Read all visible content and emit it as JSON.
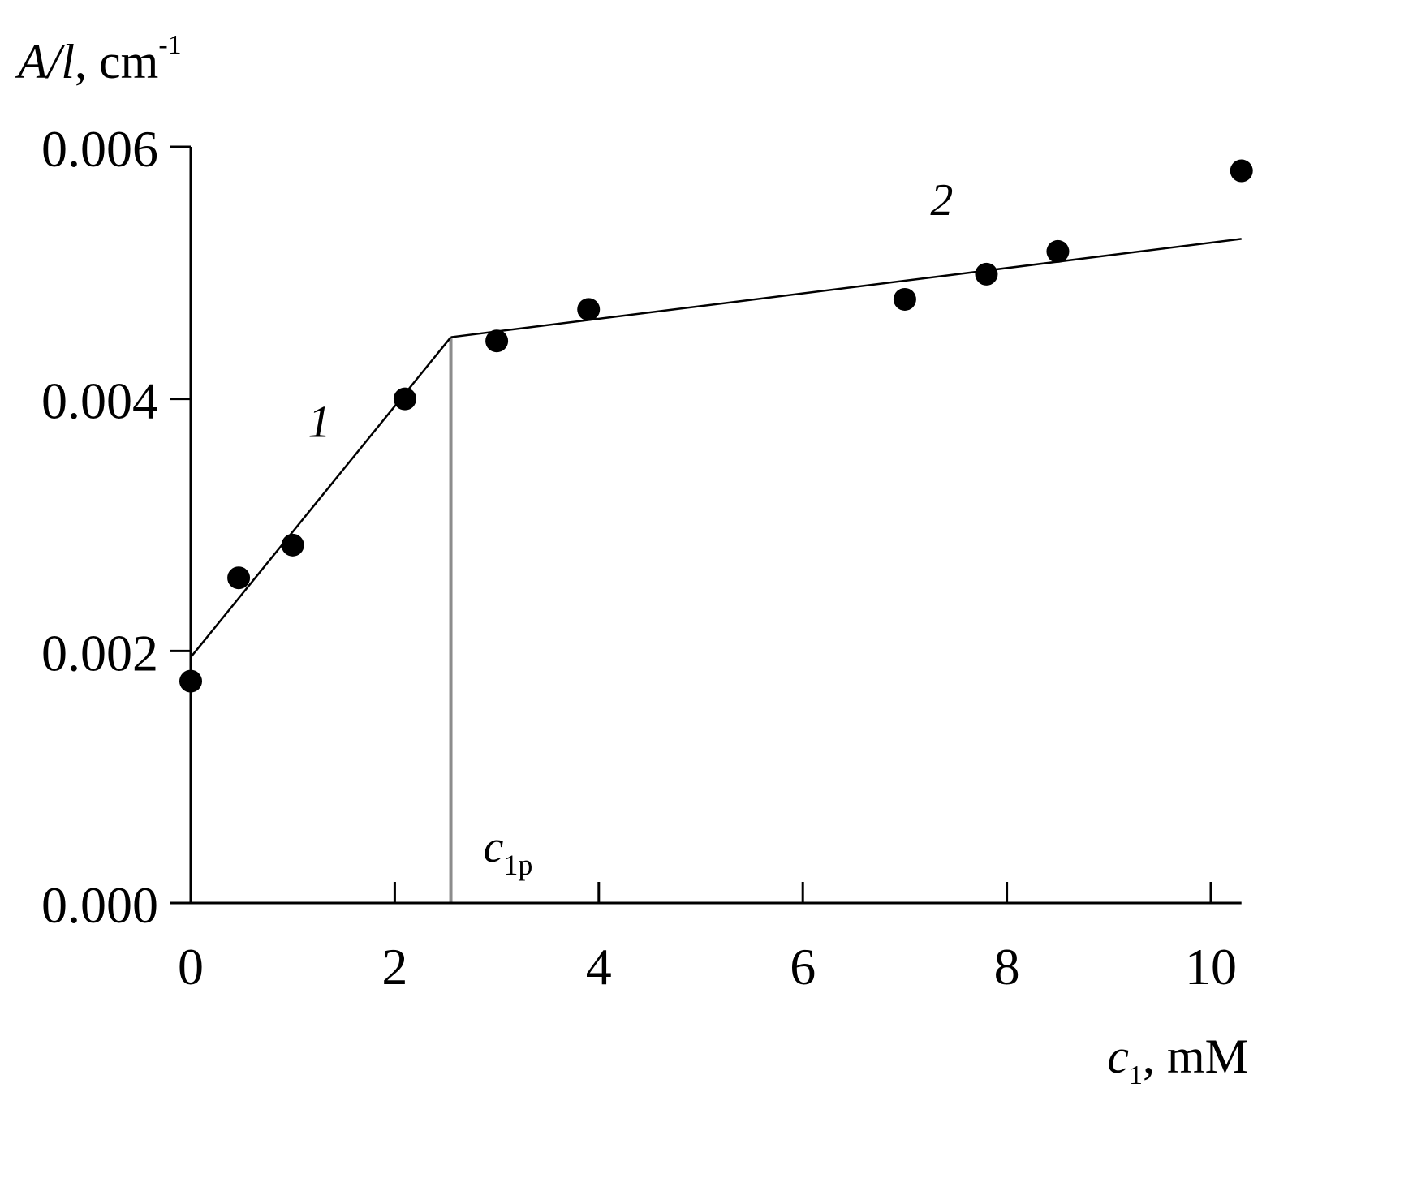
{
  "chart_data": {
    "type": "scatter",
    "title": "",
    "xlabel": {
      "symbol": "c",
      "subscript": "1",
      "unit": ", mM"
    },
    "ylabel": {
      "symbol": "A/l",
      "unit": ", cm",
      "superscript": "-1"
    },
    "xlim": [
      0,
      10.3
    ],
    "ylim": [
      0,
      0.006
    ],
    "x_ticks": [
      0,
      2,
      4,
      6,
      8,
      10
    ],
    "x_tick_labels": [
      "0",
      "2",
      "4",
      "6",
      "8",
      "10"
    ],
    "y_ticks": [
      0,
      0.002,
      0.004,
      0.006
    ],
    "y_tick_labels": [
      "0.000",
      "0.002",
      "0.004",
      "0.006"
    ],
    "grid": false,
    "series": [
      {
        "marker": "filled-circle",
        "x": [
          0.0,
          0.47,
          1.0,
          2.1,
          3.0,
          3.9,
          7.0,
          7.8,
          8.5,
          10.3
        ],
        "y": [
          0.00176,
          0.00258,
          0.00284,
          0.004,
          0.00446,
          0.00471,
          0.00479,
          0.00499,
          0.00517,
          0.00581
        ]
      }
    ],
    "fit_lines": [
      {
        "label": "1",
        "x": [
          0.0,
          2.55
        ],
        "y": [
          0.00195,
          0.00449
        ]
      },
      {
        "label": "2",
        "x": [
          2.55,
          10.3
        ],
        "y": [
          0.00449,
          0.00527
        ]
      }
    ],
    "vertical_marker": {
      "x": 2.55,
      "label": {
        "symbol": "c",
        "subscript": "1p"
      },
      "color": "#8c8c8c"
    },
    "colors": {
      "points": "#000000",
      "lines": "#000000",
      "axes": "#000000"
    }
  }
}
